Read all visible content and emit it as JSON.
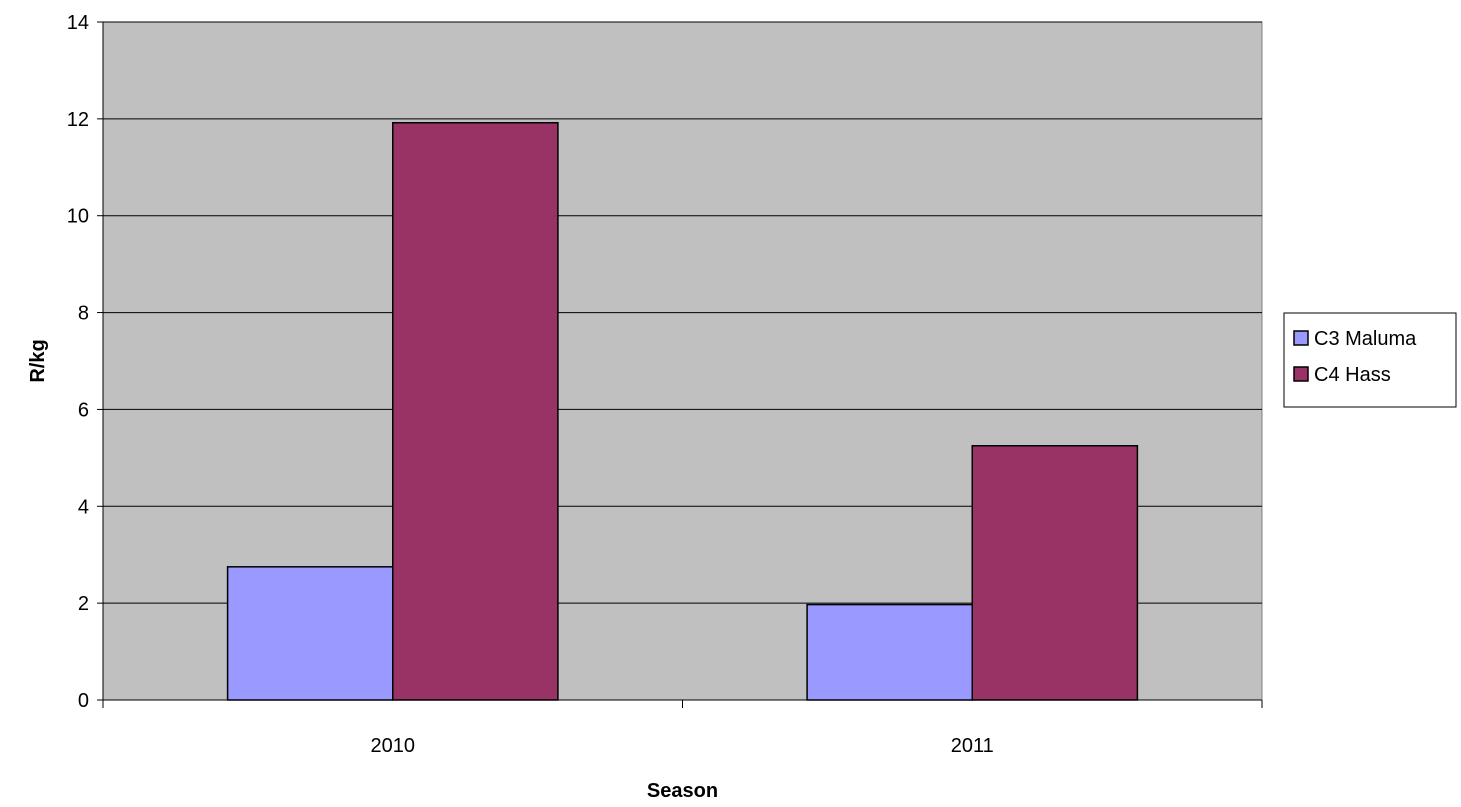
{
  "chart_data": {
    "type": "bar",
    "title": "",
    "xlabel": "Season",
    "ylabel": "R/kg",
    "categories": [
      "2010",
      "2011"
    ],
    "series": [
      {
        "name": "C3 Maluma",
        "values": [
          2.75,
          1.97
        ],
        "color": "#9999ff"
      },
      {
        "name": "C4 Hass",
        "values": [
          11.92,
          5.25
        ],
        "color": "#993366"
      }
    ],
    "ylim": [
      0,
      14
    ],
    "yticks": [
      "0",
      "2",
      "4",
      "6",
      "8",
      "10",
      "12",
      "14"
    ],
    "grid": true,
    "legend_position": "right",
    "plot_background": "#c0c0c0"
  }
}
